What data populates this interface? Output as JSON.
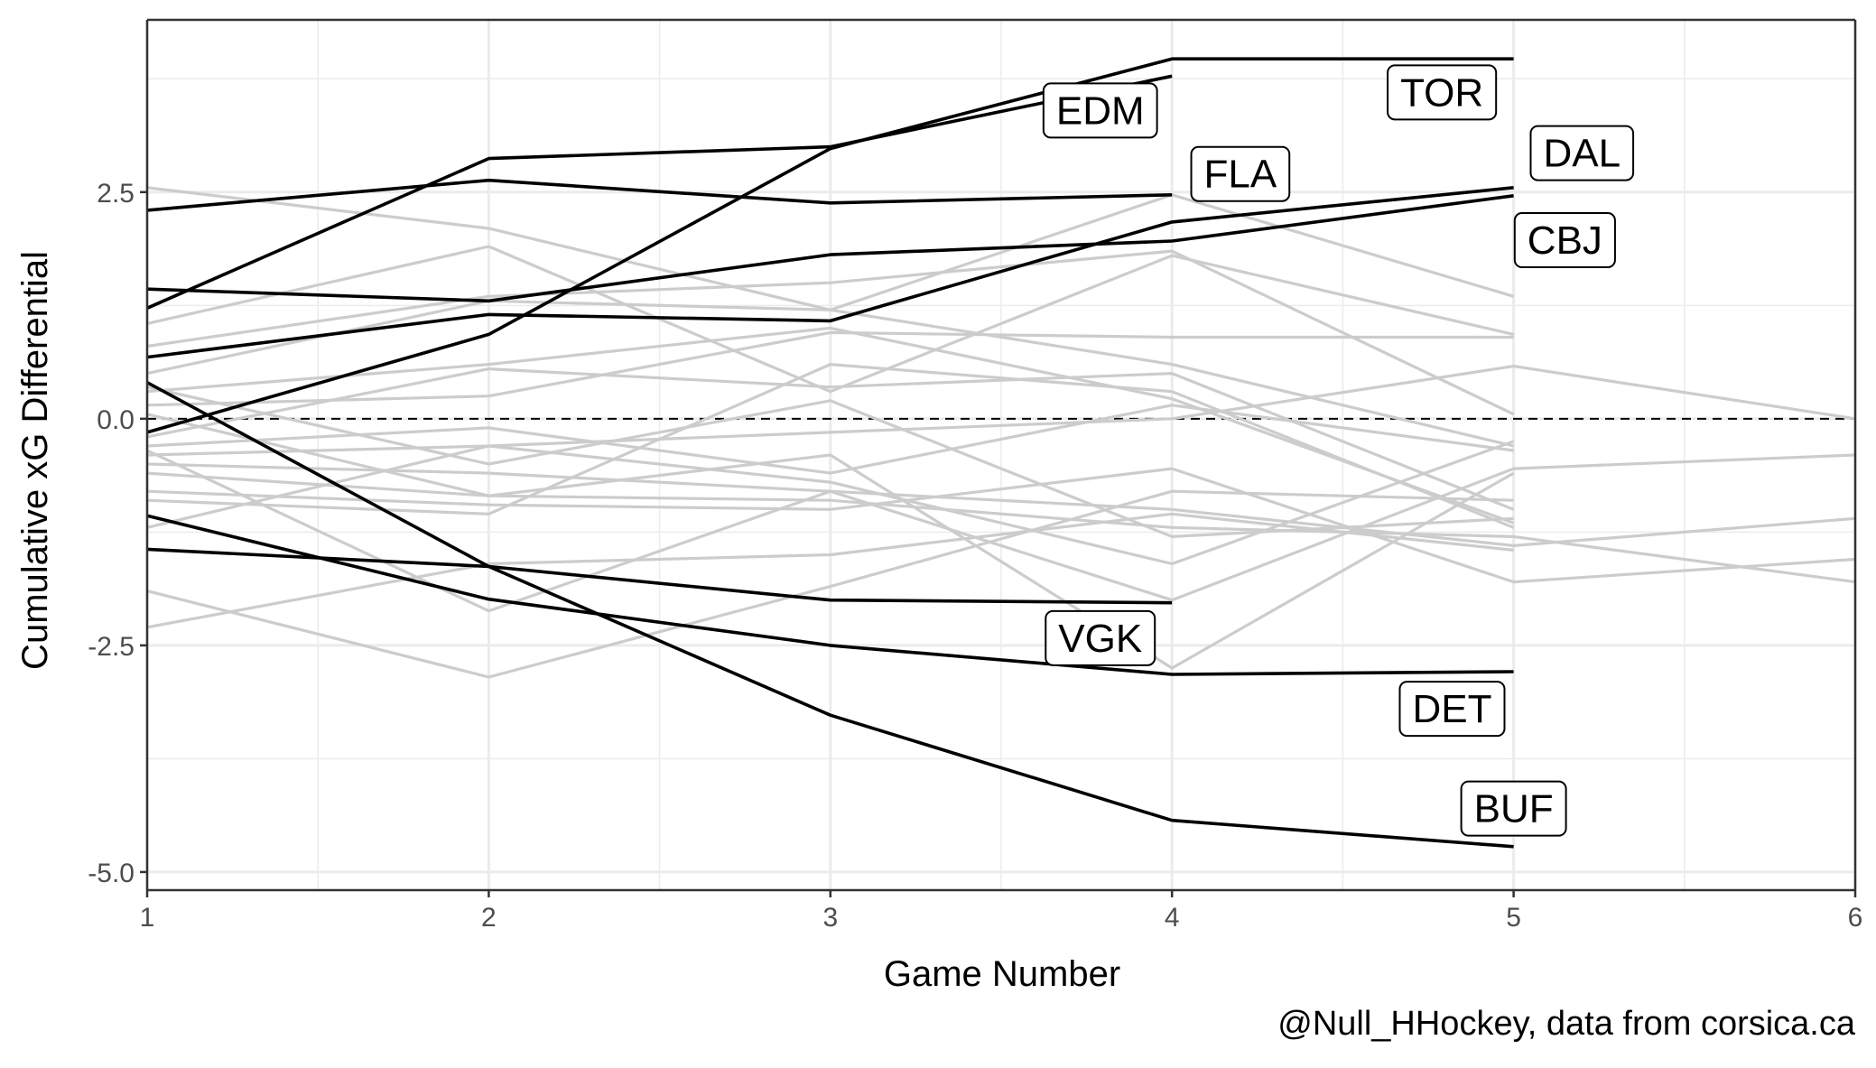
{
  "chart_data": {
    "type": "line",
    "xlabel": "Game Number",
    "ylabel": "Cumulative xG Differential",
    "caption": "@Null_HHockey, data from corsica.ca",
    "xlim": [
      1,
      6
    ],
    "ylim": [
      -5.2,
      4.4
    ],
    "x_ticks": [
      1,
      2,
      3,
      4,
      5,
      6
    ],
    "x_tick_labels": [
      "1",
      "2",
      "3",
      "4",
      "5",
      "6"
    ],
    "y_ticks": [
      -5.0,
      -2.5,
      0.0,
      2.5
    ],
    "y_tick_labels": [
      "-5.0",
      "-2.5",
      "0.0",
      "2.5"
    ],
    "reference_line": 0.0,
    "grid": true,
    "legend": "none",
    "colors": {
      "highlight": "#000000",
      "background_series": "#cccccc",
      "grid": "#ebebeb",
      "panel_border": "#333333"
    },
    "highlighted_series": [
      {
        "name": "TOR",
        "x": [
          1,
          2,
          3,
          4,
          5
        ],
        "values": [
          -0.15,
          0.93,
          2.98,
          3.97,
          3.97
        ]
      },
      {
        "name": "EDM",
        "x": [
          1,
          2,
          3,
          4
        ],
        "values": [
          1.22,
          2.87,
          3.0,
          3.78
        ]
      },
      {
        "name": "FLA",
        "x": [
          1,
          2,
          3,
          4
        ],
        "values": [
          2.3,
          2.63,
          2.38,
          2.47
        ]
      },
      {
        "name": "DAL",
        "x": [
          1,
          2,
          3,
          4,
          5
        ],
        "values": [
          0.68,
          1.15,
          1.08,
          2.17,
          2.55
        ]
      },
      {
        "name": "CBJ",
        "x": [
          1,
          2,
          3,
          4,
          5
        ],
        "values": [
          1.43,
          1.3,
          1.81,
          1.96,
          2.46
        ]
      },
      {
        "name": "VGK",
        "x": [
          1,
          2,
          3,
          4
        ],
        "values": [
          -1.44,
          -1.63,
          -2.0,
          -2.03
        ]
      },
      {
        "name": "DET",
        "x": [
          1,
          2,
          3,
          4,
          5
        ],
        "values": [
          -1.07,
          -1.99,
          -2.5,
          -2.82,
          -2.79
        ]
      },
      {
        "name": "BUF",
        "x": [
          1,
          2,
          3,
          4,
          5
        ],
        "values": [
          0.4,
          -1.63,
          -3.27,
          -4.43,
          -4.72
        ]
      }
    ],
    "labels": [
      {
        "text": "TOR",
        "x": 4.79,
        "y": 3.6
      },
      {
        "text": "EDM",
        "x": 3.79,
        "y": 3.4
      },
      {
        "text": "FLA",
        "x": 4.2,
        "y": 2.7
      },
      {
        "text": "DAL",
        "x": 5.2,
        "y": 2.93
      },
      {
        "text": "CBJ",
        "x": 5.15,
        "y": 1.97
      },
      {
        "text": "VGK",
        "x": 3.79,
        "y": -2.42
      },
      {
        "text": "DET",
        "x": 4.82,
        "y": -3.2
      },
      {
        "text": "BUF",
        "x": 5.0,
        "y": -4.3
      }
    ],
    "background_series": [
      {
        "x": [
          1,
          2,
          3,
          4,
          5
        ],
        "values": [
          2.55,
          2.1,
          1.2,
          2.47,
          1.35
        ]
      },
      {
        "x": [
          1,
          2,
          3,
          4,
          5
        ],
        "values": [
          1.05,
          1.9,
          0.3,
          1.8,
          0.93
        ]
      },
      {
        "x": [
          1,
          2,
          3,
          4,
          5
        ],
        "values": [
          0.8,
          1.35,
          1.5,
          1.85,
          0.05
        ]
      },
      {
        "x": [
          1,
          2,
          3,
          4,
          5
        ],
        "values": [
          0.5,
          1.3,
          1.2,
          0.6,
          -0.3
        ]
      },
      {
        "x": [
          1,
          2,
          3,
          4,
          5
        ],
        "values": [
          0.3,
          0.6,
          1.0,
          0.22,
          -1.15
        ]
      },
      {
        "x": [
          1,
          2,
          3,
          4,
          5
        ],
        "values": [
          0.15,
          0.25,
          0.95,
          0.9,
          0.9
        ]
      },
      {
        "x": [
          1,
          2,
          3,
          4,
          5
        ],
        "values": [
          -0.2,
          0.55,
          0.35,
          0.5,
          -1.0
        ]
      },
      {
        "x": [
          1,
          2,
          3,
          4,
          5
        ],
        "values": [
          -0.3,
          -0.1,
          -0.6,
          0.15,
          -0.35
        ]
      },
      {
        "x": [
          1,
          2,
          3,
          4,
          5,
          6
        ],
        "values": [
          -0.4,
          -0.3,
          -0.15,
          0.0,
          0.58,
          0.0
        ]
      },
      {
        "x": [
          1,
          2,
          3,
          4,
          5,
          6
        ],
        "values": [
          -0.5,
          -0.6,
          -0.8,
          -1.0,
          -1.4,
          -1.1
        ]
      },
      {
        "x": [
          1,
          2,
          3,
          4,
          5,
          6
        ],
        "values": [
          -0.6,
          -0.85,
          -0.9,
          -1.2,
          -1.3,
          -1.8
        ]
      },
      {
        "x": [
          1,
          2,
          3,
          4,
          5,
          6
        ],
        "values": [
          -0.8,
          -0.95,
          -1.0,
          -0.55,
          -1.8,
          -1.55
        ]
      },
      {
        "x": [
          1,
          2,
          3,
          4,
          5
        ],
        "values": [
          -1.2,
          -0.3,
          -0.7,
          -1.6,
          -0.25
        ]
      },
      {
        "x": [
          1,
          2,
          3,
          4,
          5
        ],
        "values": [
          -2.3,
          -1.6,
          -1.5,
          -1.05,
          -1.45
        ]
      },
      {
        "x": [
          1,
          2,
          3,
          4,
          5,
          6
        ],
        "values": [
          -0.35,
          -2.12,
          -0.8,
          -2.0,
          -0.55,
          -0.4
        ]
      },
      {
        "x": [
          1,
          2,
          3,
          4,
          5
        ],
        "values": [
          -1.9,
          -2.85,
          -1.85,
          -0.8,
          -0.9
        ]
      },
      {
        "x": [
          1,
          2,
          3,
          4,
          5
        ],
        "values": [
          0.05,
          -0.85,
          -0.4,
          -2.75,
          -0.6
        ]
      },
      {
        "x": [
          1,
          2,
          3,
          4,
          5
        ],
        "values": [
          -0.9,
          -1.05,
          0.6,
          0.3,
          -1.2
        ]
      },
      {
        "x": [
          1,
          2,
          3,
          4,
          5
        ],
        "values": [
          0.35,
          -0.5,
          0.2,
          -1.3,
          -1.1
        ]
      }
    ]
  }
}
